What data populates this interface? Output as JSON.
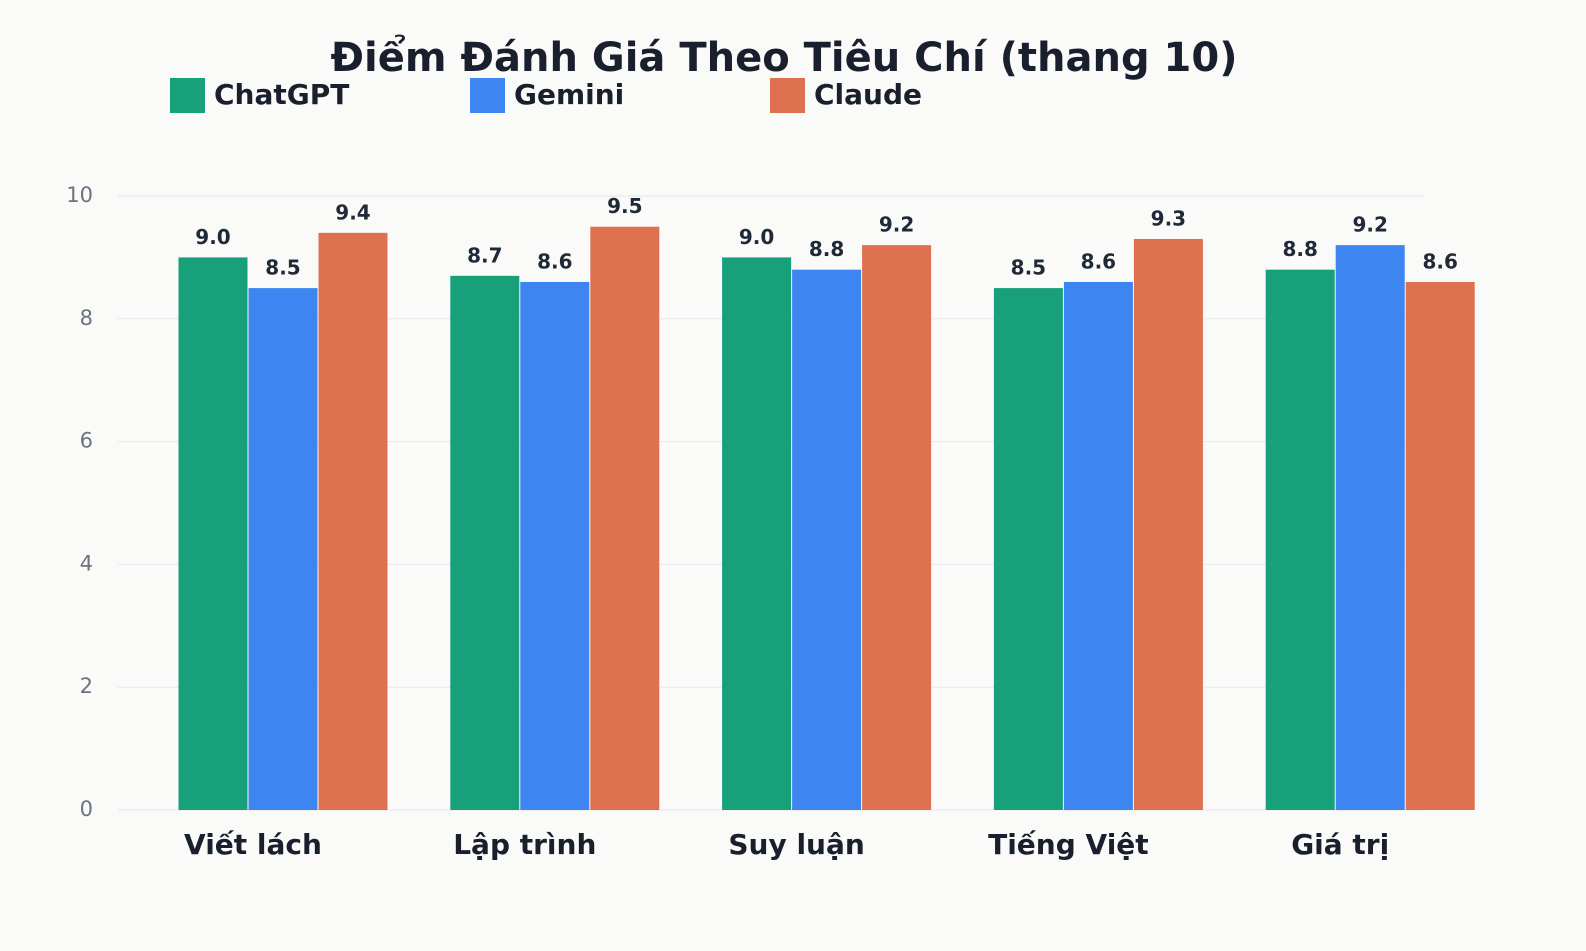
{
  "chart_data": {
    "type": "bar",
    "title": "Điểm Đánh Giá Theo Tiêu Chí (thang 10)",
    "categories": [
      "Viết lách",
      "Lập trình",
      "Suy luận",
      "Tiếng Việt",
      "Giá trị"
    ],
    "series": [
      {
        "name": "ChatGPT",
        "color": "#17a07a",
        "values": [
          9.0,
          8.7,
          9.0,
          8.5,
          8.8
        ],
        "value_labels": [
          "9.0",
          "8.7",
          "9.0",
          "8.5",
          "8.8"
        ]
      },
      {
        "name": "Gemini",
        "color": "#3d85f0",
        "values": [
          8.5,
          8.6,
          8.8,
          8.6,
          9.2
        ],
        "value_labels": [
          "8.5",
          "8.6",
          "8.8",
          "8.6",
          "9.2"
        ]
      },
      {
        "name": "Claude",
        "color": "#de7250",
        "values": [
          9.4,
          9.5,
          9.2,
          9.3,
          8.6
        ],
        "value_labels": [
          "9.4",
          "9.5",
          "9.2",
          "9.3",
          "8.6"
        ]
      }
    ],
    "ylim": [
      0,
      10
    ],
    "yticks": [
      0,
      2,
      4,
      6,
      8,
      10
    ],
    "grid": true
  }
}
